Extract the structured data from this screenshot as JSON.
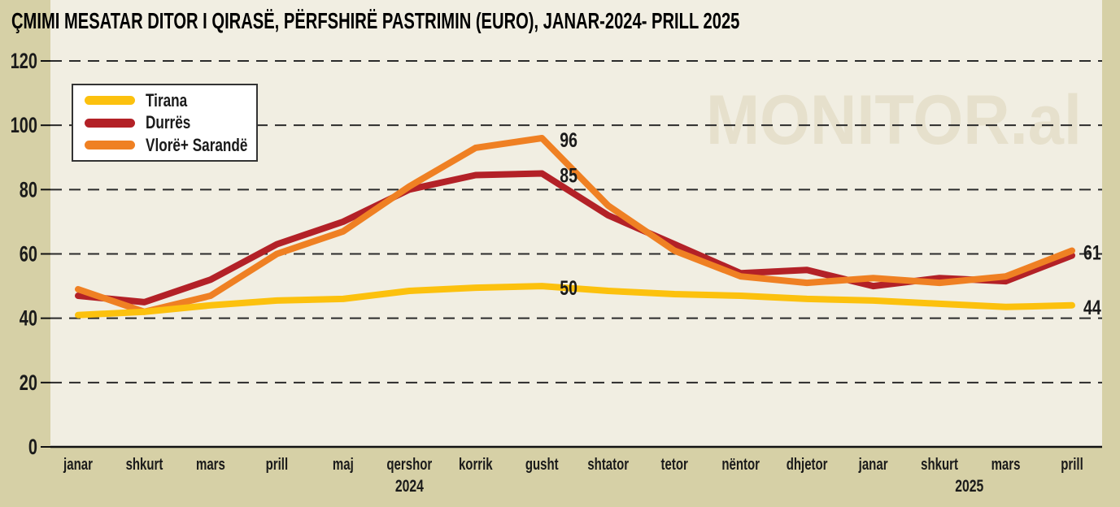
{
  "page": {
    "background_color": "#d6d0a6",
    "text_color": "#1a1a1a"
  },
  "chart_data": {
    "type": "line",
    "title": "ÇMIMI MESATAR DITOR I QIRASË, PËRFSHIRË PASTRIMIN (EURO), JANAR-2024- PRILL 2025",
    "watermark": "MONITOR.al",
    "plot_background": "#f1eee2",
    "watermark_color": "#e6e0cc",
    "grid_color": "#2b2b2b",
    "axis_color": "#111111",
    "label_color": "#1a1a1a",
    "grid": "dashed-horizontal",
    "legend_position": "top-left",
    "ylim": [
      0,
      120
    ],
    "yticks": [
      0,
      20,
      40,
      60,
      80,
      100,
      120
    ],
    "categories": [
      "janar",
      "shkurt",
      "mars",
      "prill",
      "maj",
      "qershor",
      "korrik",
      "gusht",
      "shtator",
      "tetor",
      "nëntor",
      "dhjetor",
      "janar",
      "shkurt",
      "mars",
      "prill"
    ],
    "year_labels": [
      {
        "text": "2024",
        "anchor_index": 5.0
      },
      {
        "text": "2025",
        "anchor_index": 13.45
      }
    ],
    "series": [
      {
        "name": "Tirana",
        "color": "#fcc10e",
        "values": [
          41,
          42,
          44,
          45.5,
          46,
          48.5,
          49.5,
          50,
          48.5,
          47.5,
          47,
          46,
          45.5,
          44.5,
          43.5,
          44
        ]
      },
      {
        "name": "Durrës",
        "color": "#b32127",
        "values": [
          47,
          45,
          52,
          63,
          70,
          80,
          84.5,
          85,
          72,
          63,
          54,
          55,
          50,
          52.5,
          51.5,
          59.5
        ]
      },
      {
        "name": "Vlorë+ Sarandë",
        "color": "#ef8023",
        "values": [
          49,
          42,
          47,
          60,
          67,
          81,
          93,
          96,
          75,
          61,
          53,
          51,
          52.5,
          51,
          53,
          61
        ]
      }
    ],
    "point_labels": [
      {
        "series": 2,
        "index": 7,
        "text": "96"
      },
      {
        "series": 1,
        "index": 7,
        "text": "85"
      },
      {
        "series": 0,
        "index": 7,
        "text": "50"
      },
      {
        "series": 2,
        "index": 15,
        "text": "61"
      },
      {
        "series": 0,
        "index": 15,
        "text": "44"
      }
    ]
  }
}
